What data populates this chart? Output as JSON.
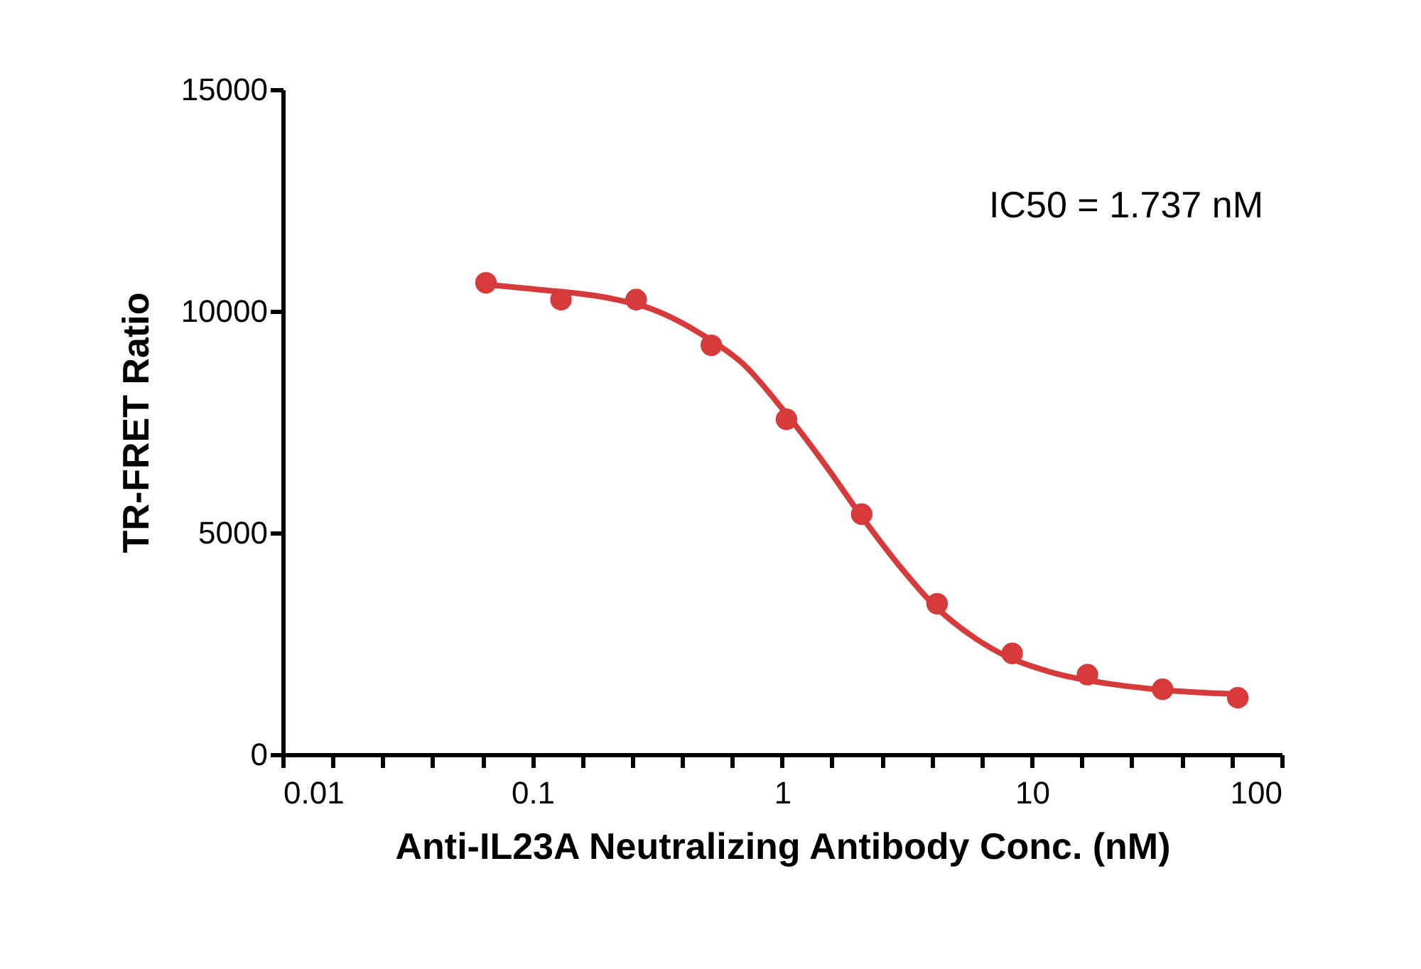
{
  "chart_data": {
    "type": "scatter",
    "xlabel": "Anti-IL23A Neutralizing Antibody Conc. (nM)",
    "ylabel": "TR-FRET Ratio",
    "log": "x",
    "grid": false,
    "annotations": [
      "IC50 = 1.737 nM"
    ],
    "xlim": [
      0.01,
      100
    ],
    "ylim": [
      0,
      15000
    ],
    "yticks": [
      0,
      5000,
      10000,
      15000
    ],
    "xticks": [
      "0.01",
      {
        "value": 0.0158,
        "label": null
      },
      {
        "value": 0.0251,
        "label": null
      },
      {
        "value": 0.0398,
        "label": null
      },
      {
        "value": 0.0631,
        "label": null
      },
      "0.1",
      {
        "value": 0.158,
        "label": null
      },
      {
        "value": 0.251,
        "label": null
      },
      {
        "value": 0.398,
        "label": null
      },
      {
        "value": 0.631,
        "label": null
      },
      1,
      {
        "value": 1.58,
        "label": null
      },
      {
        "value": 2.51,
        "label": null
      },
      {
        "value": 3.98,
        "label": null
      },
      {
        "value": 6.31,
        "label": null
      },
      10,
      {
        "value": 15.8,
        "label": null
      },
      {
        "value": 25.1,
        "label": null
      },
      {
        "value": 39.8,
        "label": null
      },
      {
        "value": 63.1,
        "label": null
      },
      100
    ],
    "series": [
      {
        "color": "#d63a3a",
        "marker": "circle",
        "x": [
          0.0651,
          0.13,
          0.26,
          0.52,
          1.04,
          2.08,
          4.17,
          8.33,
          16.67,
          33.33,
          66.67
        ],
        "values": [
          10640,
          10260,
          10260,
          9230,
          7560,
          5420,
          3400,
          2280,
          1800,
          1470,
          1280
        ]
      },
      {
        "type": "line",
        "color": "#d63a3a",
        "line_style": "solid",
        "x": [
          0.065,
          0.1,
          0.2,
          0.3,
          0.5,
          0.7,
          1,
          1.5,
          2,
          3,
          4,
          6,
          8,
          12,
          20,
          30,
          50,
          66.7
        ],
        "values": [
          10600,
          10500,
          10300,
          10050,
          9400,
          8800,
          7800,
          6500,
          5500,
          4200,
          3400,
          2600,
          2200,
          1850,
          1600,
          1480,
          1390,
          1360
        ]
      }
    ]
  }
}
